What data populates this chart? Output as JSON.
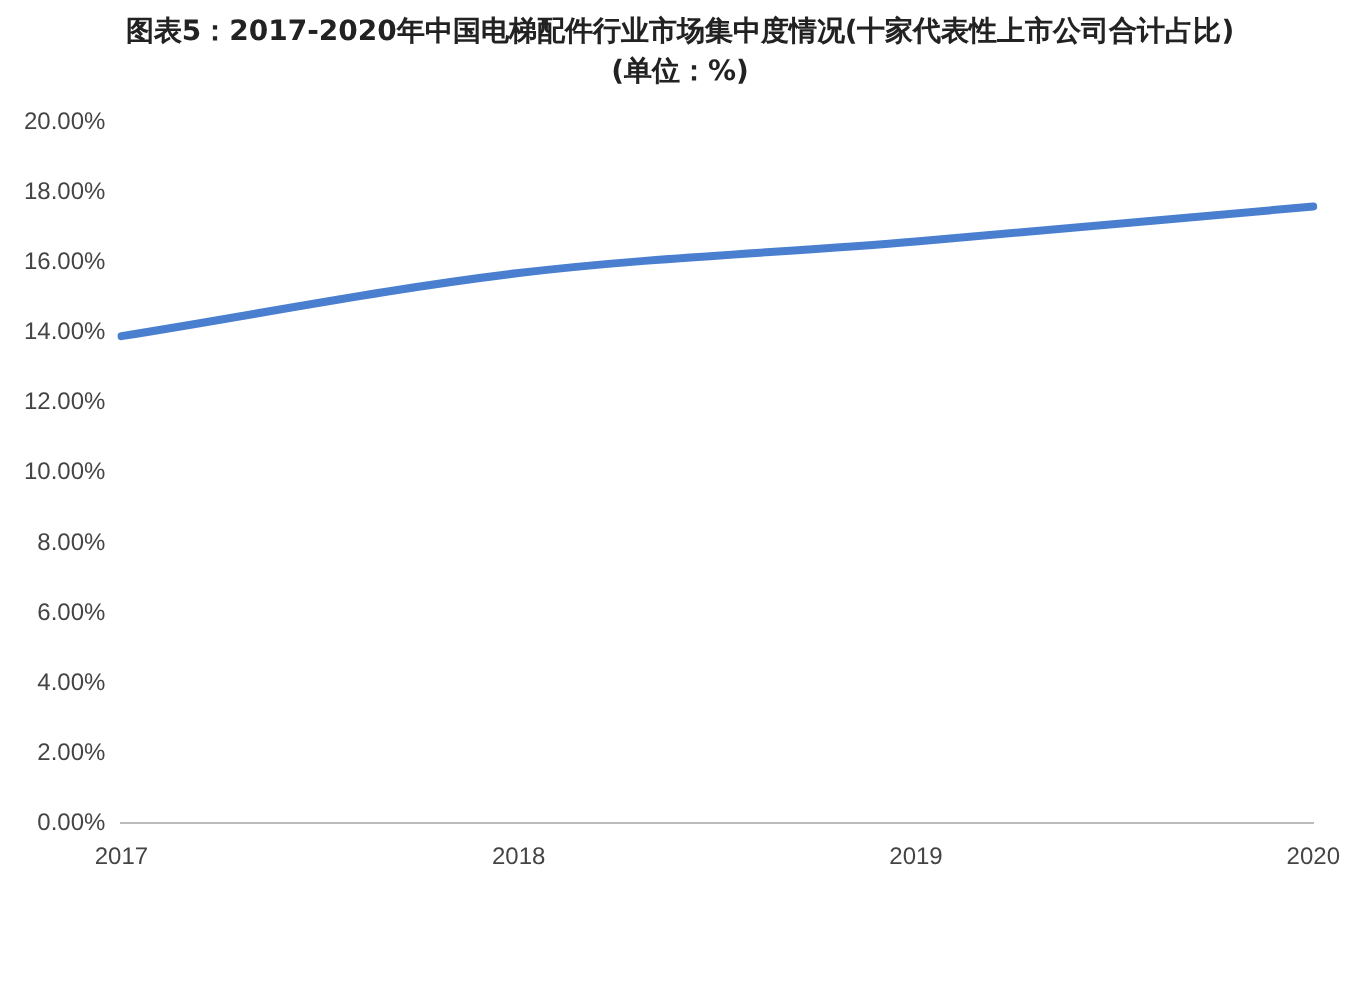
{
  "chart_data": {
    "type": "line",
    "title": "图表5：2017-2020年中国电梯配件行业市场集中度情况(十家代表性上市公司合计占比)",
    "subtitle": "(单位：%)",
    "categories": [
      "2017",
      "2018",
      "2019",
      "2020"
    ],
    "series": [
      {
        "color": "#4a7fd0",
        "values": [
          13.9,
          15.7,
          16.6,
          17.6
        ]
      }
    ],
    "ylim": [
      0,
      20
    ],
    "yticks": [
      {
        "value": 0,
        "label": "0.00%"
      },
      {
        "value": 2,
        "label": "2.00%"
      },
      {
        "value": 4,
        "label": "4.00%"
      },
      {
        "value": 6,
        "label": "6.00%"
      },
      {
        "value": 8,
        "label": "8.00%"
      },
      {
        "value": 10,
        "label": "10.00%"
      },
      {
        "value": 12,
        "label": "12.00%"
      },
      {
        "value": 14,
        "label": "14.00%"
      },
      {
        "value": 16,
        "label": "16.00%"
      },
      {
        "value": 18,
        "label": "18.00%"
      },
      {
        "value": 20,
        "label": "20.00%"
      }
    ],
    "grid": false,
    "legend": false,
    "marker": "none",
    "line_style": "solid"
  }
}
